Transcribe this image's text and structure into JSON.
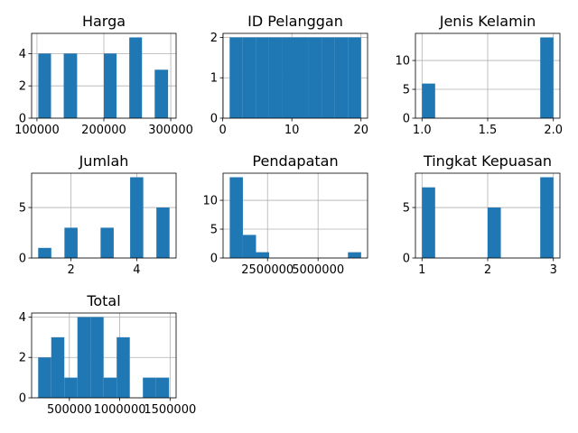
{
  "chart_data": [
    {
      "type": "bar",
      "title": "Harga",
      "xlim": [
        92000,
        308000
      ],
      "ylim": [
        0,
        5.25
      ],
      "xticks": [
        100000,
        200000,
        300000
      ],
      "xtick_labels": [
        "100000",
        "200000",
        "300000"
      ],
      "yticks": [
        0,
        2,
        4
      ],
      "ytick_labels": [
        "0",
        "2",
        "4"
      ],
      "bins": [
        {
          "x0": 102000,
          "x1": 121000,
          "count": 4
        },
        {
          "x0": 140000,
          "x1": 160000,
          "count": 4
        },
        {
          "x0": 200000,
          "x1": 219000,
          "count": 4
        },
        {
          "x0": 238000,
          "x1": 257000,
          "count": 5
        },
        {
          "x0": 276000,
          "x1": 296000,
          "count": 3
        }
      ],
      "grid": true
    },
    {
      "type": "bar",
      "title": "ID Pelanggan",
      "xlim": [
        0.05,
        20.95
      ],
      "ylim": [
        0,
        2.1
      ],
      "xticks": [
        0,
        10,
        20
      ],
      "xtick_labels": [
        "0",
        "10",
        "20"
      ],
      "yticks": [
        0,
        1,
        2
      ],
      "ytick_labels": [
        "0",
        "1",
        "2"
      ],
      "bins": [
        {
          "x0": 1.0,
          "x1": 2.9,
          "count": 2
        },
        {
          "x0": 2.9,
          "x1": 4.8,
          "count": 2
        },
        {
          "x0": 4.8,
          "x1": 6.7,
          "count": 2
        },
        {
          "x0": 6.7,
          "x1": 8.6,
          "count": 2
        },
        {
          "x0": 8.6,
          "x1": 10.5,
          "count": 2
        },
        {
          "x0": 10.5,
          "x1": 12.4,
          "count": 2
        },
        {
          "x0": 12.4,
          "x1": 14.3,
          "count": 2
        },
        {
          "x0": 14.3,
          "x1": 16.2,
          "count": 2
        },
        {
          "x0": 16.2,
          "x1": 18.1,
          "count": 2
        },
        {
          "x0": 18.1,
          "x1": 20.0,
          "count": 2
        }
      ],
      "grid": true
    },
    {
      "type": "bar",
      "title": "Jenis Kelamin",
      "xlim": [
        0.95,
        2.05
      ],
      "ylim": [
        0,
        14.7
      ],
      "xticks": [
        1.0,
        1.5,
        2.0
      ],
      "xtick_labels": [
        "1.0",
        "1.5",
        "2.0"
      ],
      "yticks": [
        0,
        5,
        10
      ],
      "ytick_labels": [
        "0",
        "5",
        "10"
      ],
      "bins": [
        {
          "x0": 1.0,
          "x1": 1.1,
          "count": 6
        },
        {
          "x0": 1.9,
          "x1": 2.0,
          "count": 14
        }
      ],
      "grid": true
    },
    {
      "type": "bar",
      "title": "Jumlah",
      "xlim": [
        0.8,
        5.2
      ],
      "ylim": [
        0,
        8.4
      ],
      "xticks": [
        2,
        4
      ],
      "xtick_labels": [
        "2",
        "4"
      ],
      "yticks": [
        0,
        5
      ],
      "ytick_labels": [
        "0",
        "5"
      ],
      "bins": [
        {
          "x0": 1.0,
          "x1": 1.4,
          "count": 1
        },
        {
          "x0": 1.8,
          "x1": 2.2,
          "count": 3
        },
        {
          "x0": 2.9,
          "x1": 3.3,
          "count": 3
        },
        {
          "x0": 3.8,
          "x1": 4.2,
          "count": 8
        },
        {
          "x0": 4.6,
          "x1": 5.0,
          "count": 5
        }
      ],
      "grid": true
    },
    {
      "type": "bar",
      "title": "Pendapatan",
      "xlim": [
        300000,
        7450000
      ],
      "ylim": [
        0,
        14.7
      ],
      "xticks": [
        2500000,
        5000000
      ],
      "xtick_labels": [
        "2500000",
        "5000000"
      ],
      "yticks": [
        0,
        5,
        10
      ],
      "ytick_labels": [
        "0",
        "5",
        "10"
      ],
      "bins": [
        {
          "x0": 630000,
          "x1": 1280000,
          "count": 14
        },
        {
          "x0": 1280000,
          "x1": 1930000,
          "count": 4
        },
        {
          "x0": 1930000,
          "x1": 2580000,
          "count": 1
        },
        {
          "x0": 6480000,
          "x1": 7130000,
          "count": 1
        }
      ],
      "grid": true
    },
    {
      "type": "bar",
      "title": "Tingkat Kepuasan",
      "xlim": [
        0.9,
        3.1
      ],
      "ylim": [
        0,
        8.4
      ],
      "xticks": [
        1,
        2,
        3
      ],
      "xtick_labels": [
        "1",
        "2",
        "3"
      ],
      "yticks": [
        0,
        5
      ],
      "ytick_labels": [
        "0",
        "5"
      ],
      "bins": [
        {
          "x0": 1.0,
          "x1": 1.2,
          "count": 7
        },
        {
          "x0": 2.0,
          "x1": 2.2,
          "count": 5
        },
        {
          "x0": 2.8,
          "x1": 3.0,
          "count": 8
        }
      ],
      "grid": true
    },
    {
      "type": "bar",
      "title": "Total",
      "xlim": [
        125000,
        1560000
      ],
      "ylim": [
        0,
        4.2
      ],
      "xticks": [
        500000,
        1000000,
        1500000
      ],
      "xtick_labels": [
        "500000",
        "1000000",
        "1500000"
      ],
      "yticks": [
        0,
        2,
        4
      ],
      "ytick_labels": [
        "0",
        "2",
        "4"
      ],
      "bins": [
        {
          "x0": 190000,
          "x1": 320000,
          "count": 2
        },
        {
          "x0": 320000,
          "x1": 450000,
          "count": 3
        },
        {
          "x0": 450000,
          "x1": 580000,
          "count": 1
        },
        {
          "x0": 580000,
          "x1": 710000,
          "count": 4
        },
        {
          "x0": 710000,
          "x1": 840000,
          "count": 4
        },
        {
          "x0": 840000,
          "x1": 970000,
          "count": 1
        },
        {
          "x0": 970000,
          "x1": 1100000,
          "count": 3
        },
        {
          "x0": 1230000,
          "x1": 1360000,
          "count": 1
        },
        {
          "x0": 1360000,
          "x1": 1490000,
          "count": 1
        }
      ],
      "grid": true
    }
  ],
  "colors": {
    "bar": "#1f77b4",
    "grid": "#b0b0b0",
    "axis": "#000000"
  }
}
